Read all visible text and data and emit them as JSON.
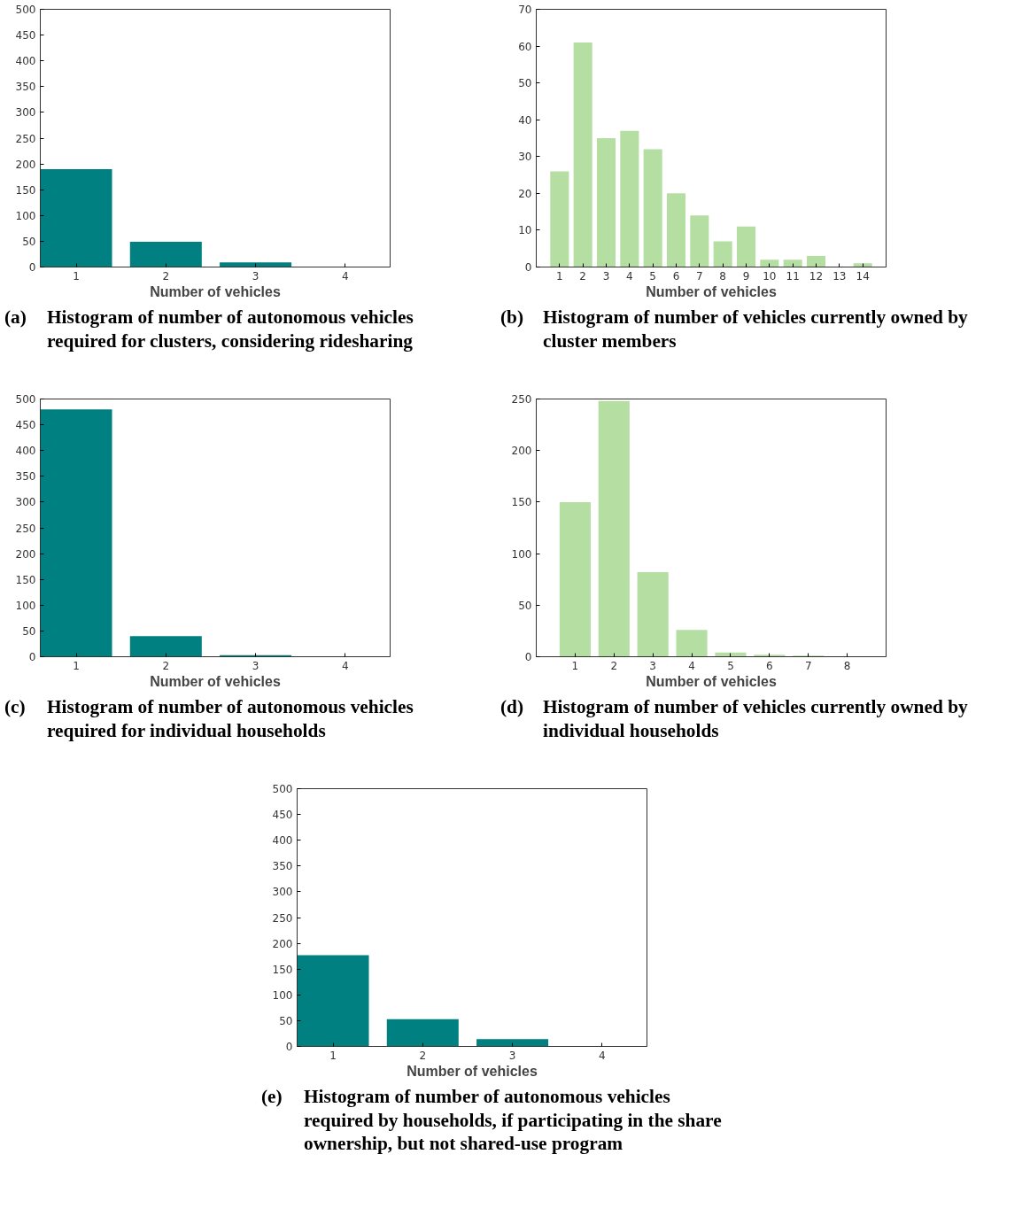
{
  "chart_data": [
    {
      "type": "bar",
      "title": "(a) Histogram of number of autonomous vehicles required for clusters, considering ridesharing",
      "xlabel": "Number of vehicles",
      "x": [
        1,
        2,
        3,
        4
      ],
      "values": [
        190,
        49,
        9,
        0
      ],
      "color": "#008080",
      "xlim": [
        0.6,
        4.5
      ],
      "xticks": [
        1,
        2,
        3,
        4
      ],
      "ylim": [
        0,
        500
      ],
      "yticks": [
        0,
        50,
        100,
        150,
        200,
        250,
        300,
        350,
        400,
        450,
        500
      ],
      "grid": false
    },
    {
      "type": "bar",
      "title": "(b) Histogram of number of vehicles currently owned by cluster members",
      "xlabel": "Number of vehicles",
      "x": [
        1,
        2,
        3,
        4,
        5,
        6,
        7,
        8,
        9,
        10,
        11,
        12,
        13,
        14
      ],
      "values": [
        26,
        61,
        35,
        37,
        32,
        20,
        14,
        7,
        11,
        2,
        2,
        3,
        0,
        1
      ],
      "color": "#b5dea3",
      "xlim": [
        0,
        15
      ],
      "xticks": [
        1,
        2,
        3,
        4,
        5,
        6,
        7,
        8,
        9,
        10,
        11,
        12,
        13,
        14
      ],
      "ylim": [
        0,
        70
      ],
      "yticks": [
        0,
        10,
        20,
        30,
        40,
        50,
        60,
        70
      ],
      "grid": false
    },
    {
      "type": "bar",
      "title": "(c) Histogram of number of autonomous vehicles required for individual households",
      "xlabel": "Number of vehicles",
      "x": [
        1,
        2,
        3,
        4
      ],
      "values": [
        480,
        40,
        3,
        0
      ],
      "color": "#008080",
      "xlim": [
        0.6,
        4.5
      ],
      "xticks": [
        1,
        2,
        3,
        4
      ],
      "ylim": [
        0,
        500
      ],
      "yticks": [
        0,
        50,
        100,
        150,
        200,
        250,
        300,
        350,
        400,
        450,
        500
      ],
      "grid": false
    },
    {
      "type": "bar",
      "title": "(d) Histogram of number of vehicles currently owned by individual households",
      "xlabel": "Number of vehicles",
      "x": [
        1,
        2,
        3,
        4,
        5,
        6,
        7,
        8
      ],
      "values": [
        150,
        248,
        82,
        26,
        4,
        2,
        1,
        0
      ],
      "color": "#b5dea3",
      "xlim": [
        0,
        9
      ],
      "xticks": [
        1,
        2,
        3,
        4,
        5,
        6,
        7,
        8
      ],
      "ylim": [
        0,
        250
      ],
      "yticks": [
        0,
        50,
        100,
        150,
        200,
        250
      ],
      "grid": false
    },
    {
      "type": "bar",
      "title": "(e) Histogram of number of autonomous vehicles required by households, if participating in the share ownership, but not shared-use program",
      "xlabel": "Number of vehicles",
      "x": [
        1,
        2,
        3,
        4
      ],
      "values": [
        177,
        53,
        14,
        0
      ],
      "color": "#008080",
      "xlim": [
        0.6,
        4.5
      ],
      "xticks": [
        1,
        2,
        3,
        4
      ],
      "ylim": [
        0,
        500
      ],
      "yticks": [
        0,
        50,
        100,
        150,
        200,
        250,
        300,
        350,
        400,
        450,
        500
      ],
      "grid": false
    }
  ]
}
